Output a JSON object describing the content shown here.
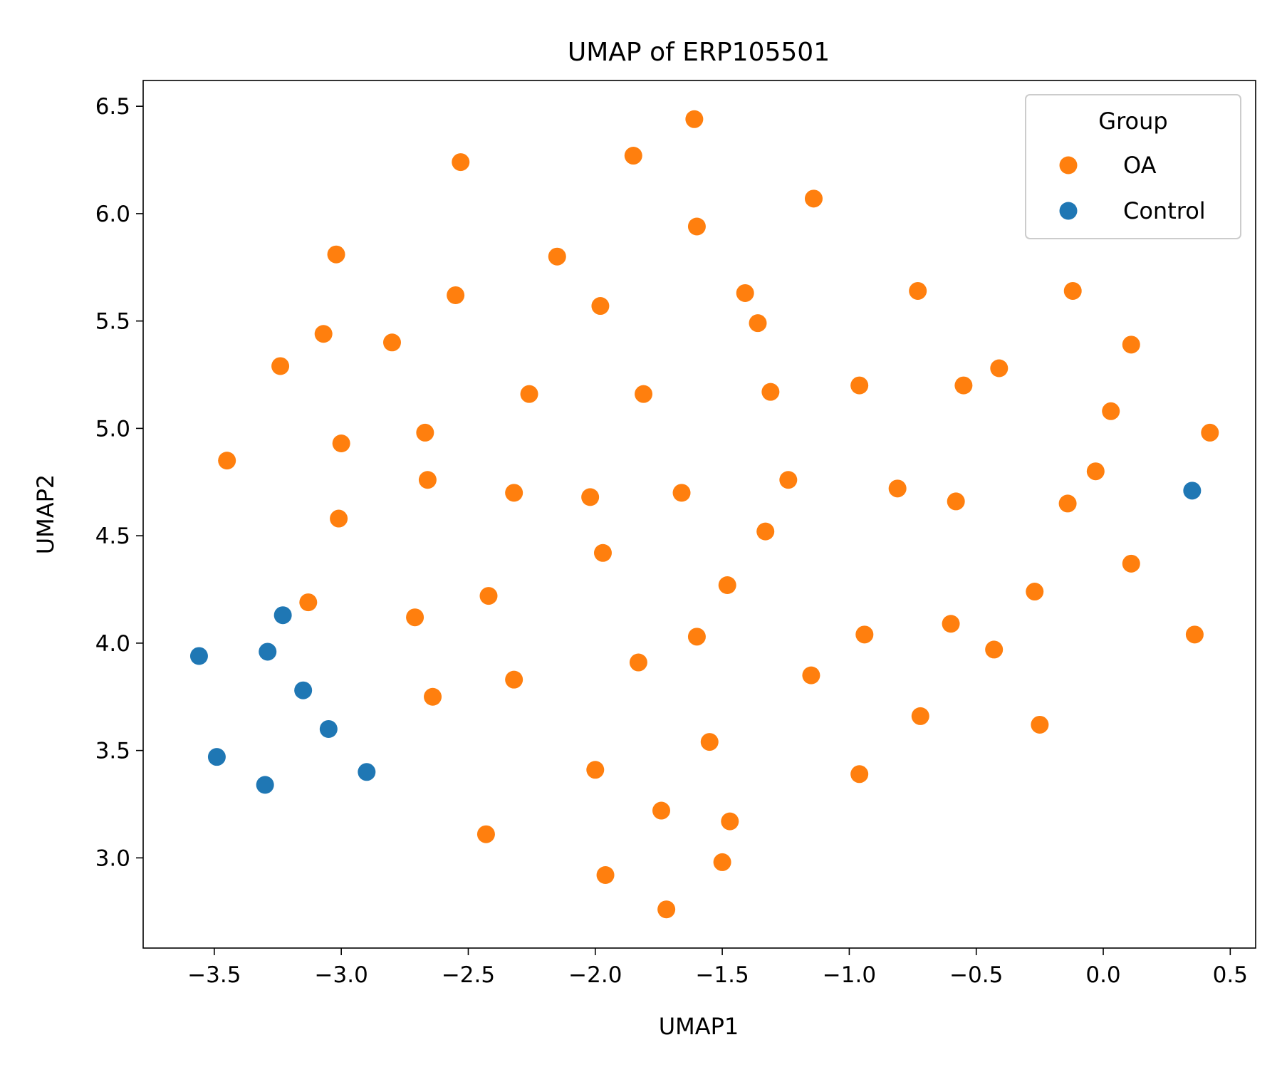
{
  "chart_data": {
    "type": "scatter",
    "title": "UMAP of ERP105501",
    "xlabel": "UMAP1",
    "ylabel": "UMAP2",
    "xlim": [
      -3.78,
      0.6
    ],
    "ylim": [
      2.58,
      6.62
    ],
    "xticks": [
      "−3.5",
      "−3.0",
      "−2.5",
      "−2.0",
      "−1.5",
      "−1.0",
      "−0.5",
      "0.0",
      "0.5"
    ],
    "xtick_values": [
      -3.5,
      -3.0,
      -2.5,
      -2.0,
      -1.5,
      -1.0,
      -0.5,
      0.0,
      0.5
    ],
    "yticks": [
      "3.0",
      "3.5",
      "4.0",
      "4.5",
      "5.0",
      "5.5",
      "6.0",
      "6.5"
    ],
    "ytick_values": [
      3.0,
      3.5,
      4.0,
      4.5,
      5.0,
      5.5,
      6.0,
      6.5
    ],
    "grid": false,
    "legend": {
      "title": "Group",
      "placement": "top-right"
    },
    "series": [
      {
        "name": "OA",
        "color": "#ff7f0e",
        "points": [
          [
            -1.61,
            6.44
          ],
          [
            -1.85,
            6.27
          ],
          [
            -2.53,
            6.24
          ],
          [
            -1.14,
            6.07
          ],
          [
            -1.6,
            5.94
          ],
          [
            -3.02,
            5.81
          ],
          [
            -2.15,
            5.8
          ],
          [
            -1.41,
            5.63
          ],
          [
            -0.73,
            5.64
          ],
          [
            -0.12,
            5.64
          ],
          [
            -2.55,
            5.62
          ],
          [
            -1.98,
            5.57
          ],
          [
            -1.36,
            5.49
          ],
          [
            -3.07,
            5.44
          ],
          [
            -2.8,
            5.4
          ],
          [
            0.11,
            5.39
          ],
          [
            -3.24,
            5.29
          ],
          [
            -0.41,
            5.28
          ],
          [
            -0.96,
            5.2
          ],
          [
            -0.55,
            5.2
          ],
          [
            -1.31,
            5.17
          ],
          [
            -2.26,
            5.16
          ],
          [
            -1.81,
            5.16
          ],
          [
            0.03,
            5.08
          ],
          [
            -2.67,
            4.98
          ],
          [
            0.42,
            4.98
          ],
          [
            -3.0,
            4.93
          ],
          [
            -3.45,
            4.85
          ],
          [
            -0.03,
            4.8
          ],
          [
            -1.24,
            4.76
          ],
          [
            -2.66,
            4.76
          ],
          [
            -0.81,
            4.72
          ],
          [
            -2.32,
            4.7
          ],
          [
            -1.66,
            4.7
          ],
          [
            -2.02,
            4.68
          ],
          [
            -0.58,
            4.66
          ],
          [
            -0.14,
            4.65
          ],
          [
            -3.01,
            4.58
          ],
          [
            -1.33,
            4.52
          ],
          [
            -1.97,
            4.42
          ],
          [
            0.11,
            4.37
          ],
          [
            -1.48,
            4.27
          ],
          [
            -0.27,
            4.24
          ],
          [
            -2.42,
            4.22
          ],
          [
            -3.13,
            4.19
          ],
          [
            -2.71,
            4.12
          ],
          [
            -0.6,
            4.09
          ],
          [
            0.36,
            4.04
          ],
          [
            -0.94,
            4.04
          ],
          [
            -1.6,
            4.03
          ],
          [
            -0.43,
            3.97
          ],
          [
            -1.83,
            3.91
          ],
          [
            -1.15,
            3.85
          ],
          [
            -2.32,
            3.83
          ],
          [
            -2.64,
            3.75
          ],
          [
            -0.72,
            3.66
          ],
          [
            -0.25,
            3.62
          ],
          [
            -1.55,
            3.54
          ],
          [
            -2.0,
            3.41
          ],
          [
            -0.96,
            3.39
          ],
          [
            -1.74,
            3.22
          ],
          [
            -1.47,
            3.17
          ],
          [
            -2.43,
            3.11
          ],
          [
            -1.5,
            2.98
          ],
          [
            -1.96,
            2.92
          ],
          [
            -1.72,
            2.76
          ]
        ]
      },
      {
        "name": "Control",
        "color": "#1f77b4",
        "points": [
          [
            0.35,
            4.71
          ],
          [
            -3.23,
            4.13
          ],
          [
            -3.56,
            3.94
          ],
          [
            -3.29,
            3.96
          ],
          [
            -3.15,
            3.78
          ],
          [
            -3.05,
            3.6
          ],
          [
            -3.49,
            3.47
          ],
          [
            -2.9,
            3.4
          ],
          [
            -3.3,
            3.34
          ]
        ]
      }
    ]
  }
}
